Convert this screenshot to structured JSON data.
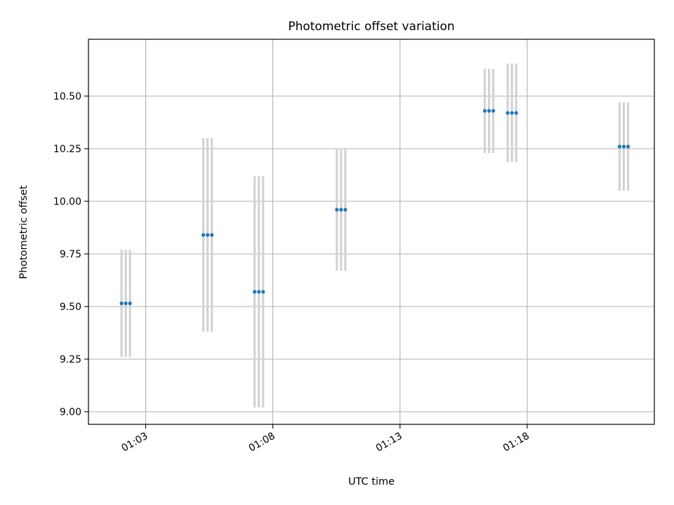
{
  "chart_data": {
    "type": "scatter",
    "title": "Photometric offset variation",
    "xlabel": "UTC time",
    "ylabel": "Photometric offset",
    "xlim": [
      "01:00:45",
      "01:23:00"
    ],
    "ylim": [
      8.94,
      10.77
    ],
    "x_ticks": [
      "01:03",
      "01:08",
      "01:13",
      "01:18"
    ],
    "y_ticks": [
      9.0,
      9.25,
      9.5,
      9.75,
      10.0,
      10.25,
      10.5
    ],
    "y_tick_labels": [
      "9.00",
      "9.25",
      "9.50",
      "9.75",
      "10.00",
      "10.25",
      "10.50"
    ],
    "grid": true,
    "marker_color": "#1f77b4",
    "errorbar_color": "#d3d3d3",
    "points": [
      {
        "time": "01:02:03",
        "y": 9.515,
        "yerr": 0.255
      },
      {
        "time": "01:02:13",
        "y": 9.515,
        "yerr": 0.255
      },
      {
        "time": "01:02:23",
        "y": 9.515,
        "yerr": 0.255
      },
      {
        "time": "01:05:16",
        "y": 9.84,
        "yerr": 0.46
      },
      {
        "time": "01:05:26",
        "y": 9.84,
        "yerr": 0.46
      },
      {
        "time": "01:05:36",
        "y": 9.84,
        "yerr": 0.46
      },
      {
        "time": "01:07:17",
        "y": 9.57,
        "yerr": 0.55
      },
      {
        "time": "01:07:27",
        "y": 9.57,
        "yerr": 0.55
      },
      {
        "time": "01:07:37",
        "y": 9.57,
        "yerr": 0.55
      },
      {
        "time": "01:10:31",
        "y": 9.96,
        "yerr": 0.29
      },
      {
        "time": "01:10:41",
        "y": 9.96,
        "yerr": 0.29
      },
      {
        "time": "01:10:51",
        "y": 9.96,
        "yerr": 0.29
      },
      {
        "time": "01:16:20",
        "y": 10.43,
        "yerr": 0.2
      },
      {
        "time": "01:16:30",
        "y": 10.43,
        "yerr": 0.2
      },
      {
        "time": "01:16:40",
        "y": 10.43,
        "yerr": 0.2
      },
      {
        "time": "01:17:14",
        "y": 10.42,
        "yerr": 0.235
      },
      {
        "time": "01:17:24",
        "y": 10.42,
        "yerr": 0.235
      },
      {
        "time": "01:17:34",
        "y": 10.42,
        "yerr": 0.235
      },
      {
        "time": "01:21:38",
        "y": 10.26,
        "yerr": 0.21
      },
      {
        "time": "01:21:48",
        "y": 10.26,
        "yerr": 0.21
      },
      {
        "time": "01:21:58",
        "y": 10.26,
        "yerr": 0.21
      }
    ]
  }
}
